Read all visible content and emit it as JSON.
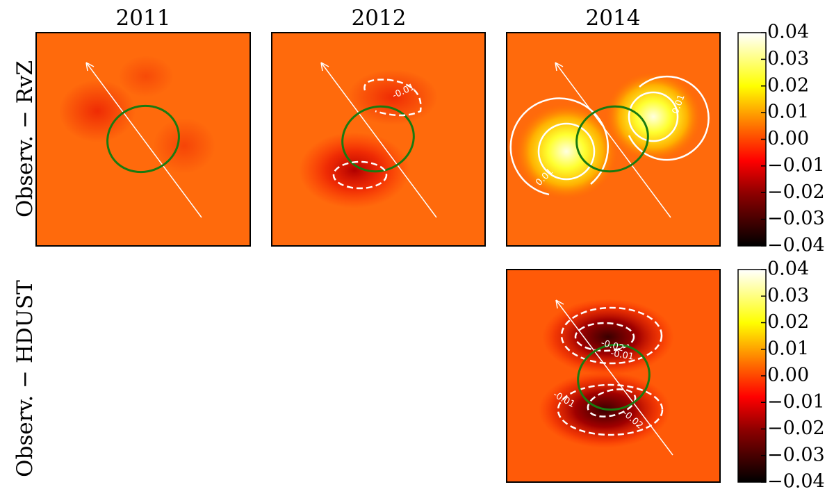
{
  "chart_data": {
    "type": "heatmap",
    "columns": [
      "2011",
      "2012",
      "2014"
    ],
    "rows": [
      "Observ. − RvZ",
      "Observ. − HDUST"
    ],
    "colorbar": {
      "ylim": [
        -0.04,
        0.04
      ],
      "yticks": [
        {
          "value": -0.04,
          "label": "−0.04"
        },
        {
          "value": -0.03,
          "label": "−0.03"
        },
        {
          "value": -0.02,
          "label": "−0.02"
        },
        {
          "value": -0.01,
          "label": "−0.01"
        },
        {
          "value": 0,
          "label": "0.00"
        },
        0.01,
        0.02,
        0.03,
        0.04
      ]
    },
    "contour_labels": {
      "rvz_2012": [
        "-0.01"
      ],
      "rvz_2014": [
        "0.01",
        "0.01"
      ],
      "hdust_2014": [
        "-0.02",
        "-0.01",
        "-0.01",
        "-0.02"
      ]
    }
  }
}
